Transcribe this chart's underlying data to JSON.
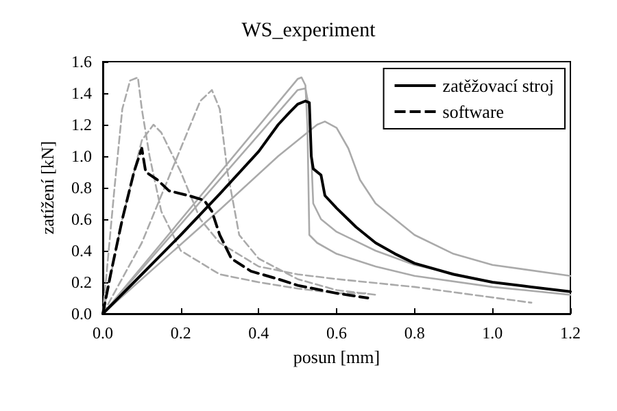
{
  "chart_data": {
    "type": "line",
    "title": "WS_experiment",
    "xlabel": "posun [mm]",
    "ylabel": "zatížení [kN]",
    "xlim": [
      0,
      1.2
    ],
    "xticks": [
      {
        "value": 0,
        "label": "0.0"
      },
      0.2,
      0.4,
      0.6,
      0.8,
      {
        "value": 1,
        "label": "1.0"
      },
      1.2
    ],
    "ylim": [
      0,
      1.6
    ],
    "yticks": [
      {
        "value": 0,
        "label": "0.0"
      },
      0.2,
      0.4,
      0.6,
      0.8,
      {
        "value": 1,
        "label": "1.0"
      },
      1.2,
      1.4,
      1.6
    ],
    "grid": false,
    "legend": "top right",
    "marker": "none",
    "series": [
      {
        "color": "#aaaaaa",
        "line_style": "solid",
        "x": [
          0,
          0.5,
          0.51,
          0.52,
          0.525,
          0.53,
          0.55,
          0.6,
          0.7,
          0.8,
          1.0,
          1.2
        ],
        "values": [
          0,
          1.49,
          1.5,
          1.45,
          1.2,
          0.5,
          0.45,
          0.38,
          0.3,
          0.24,
          0.17,
          0.12
        ]
      },
      {
        "color": "#aaaaaa",
        "line_style": "solid",
        "x": [
          0,
          0.5,
          0.52,
          0.53,
          0.54,
          0.56,
          0.6,
          0.7,
          0.8,
          1.0,
          1.2
        ],
        "values": [
          0,
          1.42,
          1.43,
          1.3,
          0.7,
          0.6,
          0.52,
          0.4,
          0.31,
          0.2,
          0.14
        ]
      },
      {
        "color": "#aaaaaa",
        "line_style": "solid",
        "x": [
          0,
          0.3,
          0.45,
          0.55,
          0.57,
          0.6,
          0.63,
          0.66,
          0.7,
          0.8,
          0.9,
          1.0,
          1.2
        ],
        "values": [
          0,
          0.66,
          1.0,
          1.2,
          1.22,
          1.18,
          1.05,
          0.85,
          0.7,
          0.5,
          0.38,
          0.31,
          0.24
        ]
      },
      {
        "color": "#aaaaaa",
        "line_style": "dashed",
        "x": [
          0,
          0.03,
          0.05,
          0.07,
          0.09,
          0.1,
          0.12,
          0.15,
          0.2,
          0.3,
          0.4,
          0.5,
          0.6,
          0.68
        ],
        "values": [
          0,
          0.8,
          1.3,
          1.48,
          1.5,
          1.3,
          1.0,
          0.65,
          0.4,
          0.25,
          0.2,
          0.16,
          0.13,
          0.13
        ]
      },
      {
        "color": "#aaaaaa",
        "line_style": "dashed",
        "x": [
          0,
          0.05,
          0.1,
          0.13,
          0.15,
          0.2,
          0.25,
          0.3,
          0.4,
          0.5,
          0.6,
          0.8,
          1.1
        ],
        "values": [
          0,
          0.6,
          1.1,
          1.2,
          1.15,
          0.9,
          0.6,
          0.45,
          0.3,
          0.25,
          0.22,
          0.17,
          0.07
        ]
      },
      {
        "color": "#aaaaaa",
        "line_style": "dashed",
        "x": [
          0,
          0.1,
          0.2,
          0.25,
          0.28,
          0.3,
          0.32,
          0.35,
          0.4,
          0.5,
          0.6,
          0.7
        ],
        "values": [
          0,
          0.45,
          1.05,
          1.35,
          1.42,
          1.3,
          0.9,
          0.5,
          0.35,
          0.22,
          0.15,
          0.12
        ]
      },
      {
        "name": "zatěžovací stroj",
        "color": "#000000",
        "line_style": "solid",
        "x": [
          0,
          0.1,
          0.2,
          0.3,
          0.4,
          0.45,
          0.48,
          0.5,
          0.52,
          0.53,
          0.535,
          0.54,
          0.56,
          0.57,
          0.6,
          0.65,
          0.7,
          0.75,
          0.8,
          0.9,
          1.0,
          1.1,
          1.2
        ],
        "values": [
          0,
          0.25,
          0.5,
          0.76,
          1.03,
          1.2,
          1.28,
          1.33,
          1.35,
          1.34,
          1.0,
          0.92,
          0.88,
          0.75,
          0.67,
          0.55,
          0.45,
          0.38,
          0.32,
          0.25,
          0.2,
          0.17,
          0.14
        ]
      },
      {
        "name": "software",
        "color": "#000000",
        "line_style": "dashed",
        "x": [
          0,
          0.02,
          0.05,
          0.08,
          0.1,
          0.11,
          0.14,
          0.17,
          0.22,
          0.26,
          0.28,
          0.3,
          0.33,
          0.38,
          0.45,
          0.5,
          0.6,
          0.68
        ],
        "values": [
          0,
          0.25,
          0.6,
          0.9,
          1.05,
          0.9,
          0.85,
          0.78,
          0.75,
          0.72,
          0.65,
          0.5,
          0.35,
          0.27,
          0.22,
          0.18,
          0.13,
          0.1
        ]
      }
    ]
  }
}
